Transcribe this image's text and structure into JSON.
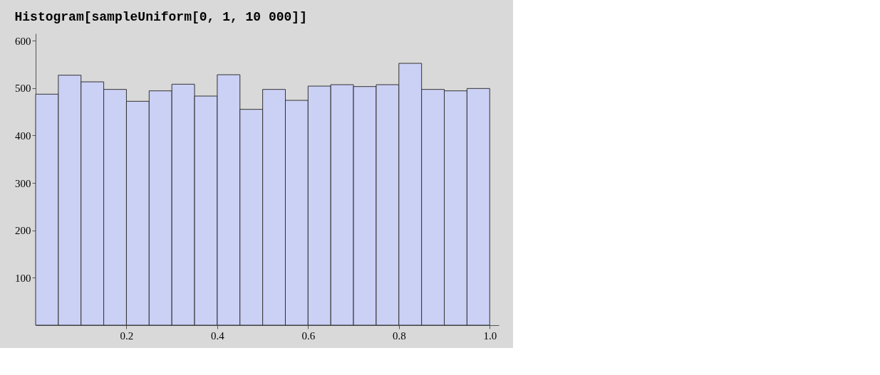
{
  "chart_data": {
    "type": "histogram",
    "title": "Histogram[sampleUniform[0, 1, 10 000]]",
    "bins": [
      0,
      0.05,
      0.1,
      0.15,
      0.2,
      0.25,
      0.3,
      0.35,
      0.4,
      0.45,
      0.5,
      0.55,
      0.6,
      0.65,
      0.7,
      0.75,
      0.8,
      0.85,
      0.9,
      0.95,
      1.0
    ],
    "values": [
      487,
      527,
      513,
      497,
      472,
      494,
      508,
      483,
      528,
      455,
      497,
      474,
      504,
      507,
      503,
      507,
      552,
      497,
      494,
      499
    ],
    "color": "#cbd0f5",
    "xlim": [
      0,
      1.02
    ],
    "ylim": [
      0,
      615
    ],
    "xticks": [
      0.2,
      0.4,
      0.6,
      0.8,
      {
        "value": 1.0,
        "label": "1.0"
      }
    ],
    "yticks": [
      100,
      200,
      300,
      400,
      500,
      600
    ]
  }
}
